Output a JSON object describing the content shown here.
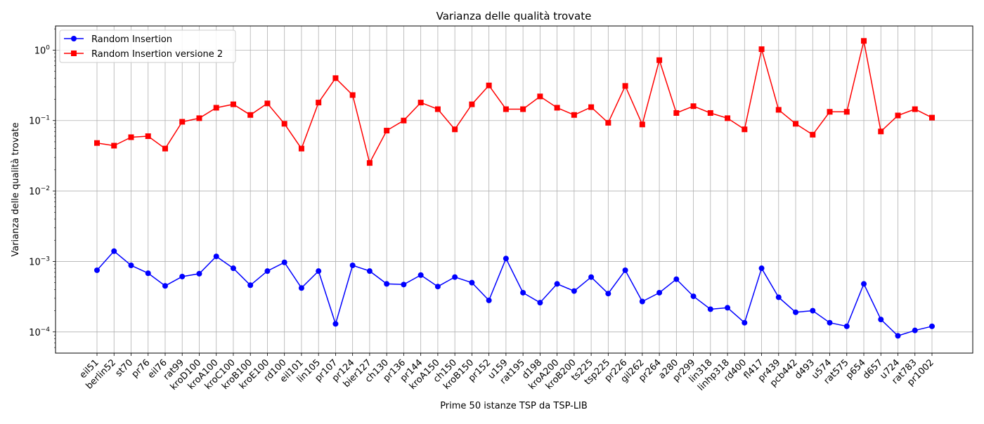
{
  "chart_data": {
    "type": "line",
    "title": "Varianza delle qualità trovate",
    "xlabel": "Prime 50 istanze TSP da TSP-LIB",
    "ylabel": "Varianza delle qualità trovate",
    "yscale": "log",
    "ylim": [
      5e-05,
      2.2
    ],
    "yticks": [
      {
        "value": 0.0001,
        "base": "10",
        "exp": "−4"
      },
      {
        "value": 0.001,
        "base": "10",
        "exp": "−3"
      },
      {
        "value": 0.01,
        "base": "10",
        "exp": "−2"
      },
      {
        "value": 0.1,
        "base": "10",
        "exp": "−1"
      },
      {
        "value": 1,
        "base": "10",
        "exp": "0"
      }
    ],
    "grid": true,
    "legend_position": "upper-left",
    "categories": [
      "eil51",
      "berlin52",
      "st70",
      "pr76",
      "eil76",
      "rat99",
      "kroD100",
      "kroA100",
      "kroC100",
      "kroB100",
      "kroE100",
      "rd100",
      "eil101",
      "lin105",
      "pr107",
      "pr124",
      "bier127",
      "ch130",
      "pr136",
      "pr144",
      "kroA150",
      "ch150",
      "kroB150",
      "pr152",
      "u159",
      "rat195",
      "d198",
      "kroA200",
      "kroB200",
      "ts225",
      "tsp225",
      "pr226",
      "gil262",
      "pr264",
      "a280",
      "pr299",
      "lin318",
      "linhp318",
      "rd400",
      "fl417",
      "pr439",
      "pcb442",
      "d493",
      "u574",
      "rat575",
      "p654",
      "d657",
      "u724",
      "rat783",
      "pr1002"
    ],
    "series": [
      {
        "name": "Random Insertion",
        "color": "#0000ff",
        "marker": "circle",
        "values": [
          0.00075,
          0.0014,
          0.00088,
          0.00068,
          0.00045,
          0.00061,
          0.00067,
          0.00118,
          0.0008,
          0.00046,
          0.00073,
          0.00097,
          0.00042,
          0.00073,
          0.00013,
          0.00088,
          0.00073,
          0.00048,
          0.00047,
          0.00064,
          0.00044,
          0.0006,
          0.0005,
          0.00028,
          0.0011,
          0.00036,
          0.00026,
          0.00048,
          0.00038,
          0.0006,
          0.00035,
          0.00075,
          0.00027,
          0.00036,
          0.00056,
          0.00032,
          0.00021,
          0.00022,
          0.000135,
          0.0008,
          0.00031,
          0.00019,
          0.0002,
          0.000135,
          0.00012,
          0.00048,
          0.00015,
          8.8e-05,
          0.000105,
          0.00012
        ]
      },
      {
        "name": "Random Insertion versione 2",
        "color": "#ff0000",
        "marker": "square",
        "values": [
          0.048,
          0.044,
          0.058,
          0.06,
          0.04,
          0.096,
          0.108,
          0.152,
          0.17,
          0.12,
          0.175,
          0.09,
          0.04,
          0.18,
          0.4,
          0.23,
          0.025,
          0.072,
          0.1,
          0.18,
          0.145,
          0.075,
          0.17,
          0.315,
          0.145,
          0.145,
          0.22,
          0.152,
          0.12,
          0.155,
          0.093,
          0.31,
          0.088,
          0.72,
          0.128,
          0.16,
          0.128,
          0.108,
          0.075,
          1.03,
          0.142,
          0.09,
          0.063,
          0.133,
          0.133,
          1.35,
          0.07,
          0.118,
          0.145,
          0.11
        ]
      }
    ]
  }
}
